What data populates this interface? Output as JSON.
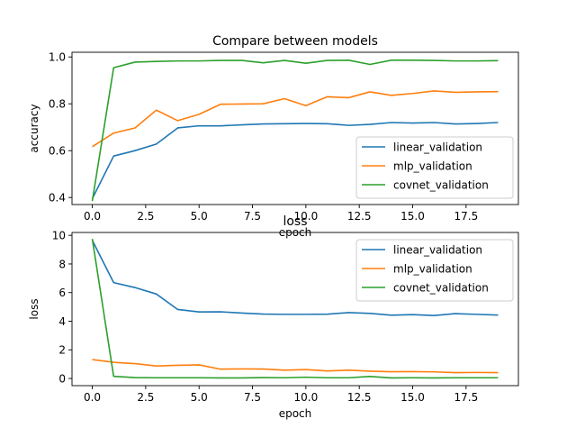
{
  "chart_data": [
    {
      "type": "line",
      "title": "Compare between models",
      "xlabel": "epoch",
      "ylabel": "accuracy",
      "xlim": [
        -0.95,
        19.95
      ],
      "ylim": [
        0.37,
        1.02
      ],
      "x_ticks": [
        "0.0",
        "2.5",
        "5.0",
        "7.5",
        "10.0",
        "12.5",
        "15.0",
        "17.5"
      ],
      "y_ticks": [
        "0.4",
        "0.6",
        "0.8",
        "1.0"
      ],
      "grid": false,
      "legend_position": "lower-right",
      "x": [
        0,
        1,
        2,
        3,
        4,
        5,
        6,
        7,
        8,
        9,
        10,
        11,
        12,
        13,
        14,
        15,
        16,
        17,
        18,
        19
      ],
      "series": [
        {
          "name": "linear_validation",
          "color": "#1f77b4",
          "values": [
            0.395,
            0.577,
            0.6,
            0.628,
            0.697,
            0.706,
            0.706,
            0.71,
            0.714,
            0.715,
            0.716,
            0.715,
            0.708,
            0.712,
            0.72,
            0.718,
            0.72,
            0.714,
            0.716,
            0.72
          ]
        },
        {
          "name": "mlp_validation",
          "color": "#ff7f0e",
          "values": [
            0.617,
            0.675,
            0.697,
            0.773,
            0.728,
            0.755,
            0.798,
            0.799,
            0.8,
            0.822,
            0.792,
            0.83,
            0.826,
            0.851,
            0.836,
            0.844,
            0.855,
            0.849,
            0.851,
            0.852
          ]
        },
        {
          "name": "covnet_validation",
          "color": "#2ca02c",
          "values": [
            0.385,
            0.954,
            0.978,
            0.981,
            0.983,
            0.983,
            0.985,
            0.985,
            0.975,
            0.985,
            0.973,
            0.985,
            0.986,
            0.968,
            0.986,
            0.986,
            0.985,
            0.983,
            0.983,
            0.984
          ]
        }
      ]
    },
    {
      "type": "line",
      "title": "loss",
      "xlabel": "epoch",
      "ylabel": "loss",
      "xlim": [
        -0.95,
        19.95
      ],
      "ylim": [
        -0.5,
        10.2
      ],
      "x_ticks": [
        "0.0",
        "2.5",
        "5.0",
        "7.5",
        "10.0",
        "12.5",
        "15.0",
        "17.5"
      ],
      "y_ticks": [
        "0",
        "2",
        "4",
        "6",
        "8",
        "10"
      ],
      "grid": false,
      "legend_position": "upper-right",
      "x": [
        0,
        1,
        2,
        3,
        4,
        5,
        6,
        7,
        8,
        9,
        10,
        11,
        12,
        13,
        14,
        15,
        16,
        17,
        18,
        19
      ],
      "series": [
        {
          "name": "linear_validation",
          "color": "#1f77b4",
          "values": [
            9.65,
            6.7,
            6.35,
            5.9,
            4.82,
            4.65,
            4.66,
            4.57,
            4.5,
            4.48,
            4.48,
            4.49,
            4.6,
            4.55,
            4.42,
            4.46,
            4.4,
            4.53,
            4.48,
            4.43
          ]
        },
        {
          "name": "mlp_validation",
          "color": "#ff7f0e",
          "values": [
            1.32,
            1.13,
            1.04,
            0.87,
            0.92,
            0.95,
            0.65,
            0.67,
            0.66,
            0.58,
            0.62,
            0.53,
            0.58,
            0.51,
            0.47,
            0.48,
            0.46,
            0.41,
            0.42,
            0.41
          ]
        },
        {
          "name": "covnet_validation",
          "color": "#2ca02c",
          "values": [
            9.75,
            0.15,
            0.06,
            0.05,
            0.05,
            0.05,
            0.04,
            0.04,
            0.06,
            0.05,
            0.09,
            0.05,
            0.05,
            0.14,
            0.04,
            0.05,
            0.04,
            0.05,
            0.05,
            0.05
          ]
        }
      ]
    }
  ]
}
